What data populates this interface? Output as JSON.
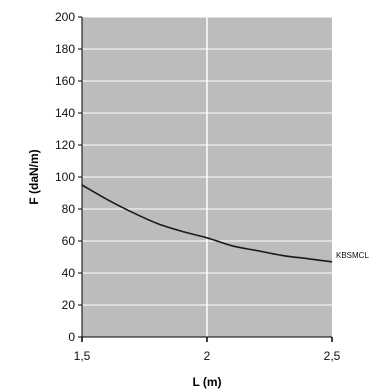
{
  "chart_data": {
    "type": "line",
    "title": "",
    "xlabel": "L (m)",
    "ylabel": "F (daN/m)",
    "xlim": [
      1.5,
      2.5
    ],
    "ylim": [
      0,
      200
    ],
    "x_ticks": [
      1.5,
      2,
      2.5
    ],
    "x_tick_labels": [
      "1,5",
      "2",
      "2,5"
    ],
    "y_ticks": [
      0,
      20,
      40,
      60,
      80,
      100,
      120,
      140,
      160,
      180,
      200
    ],
    "y_tick_labels": [
      "0",
      "20",
      "40",
      "60",
      "80",
      "100",
      "120",
      "140",
      "160",
      "180",
      "200"
    ],
    "grid": true,
    "series": [
      {
        "name": "KBSMCL",
        "x": [
          1.5,
          1.6,
          1.7,
          1.8,
          1.9,
          2.0,
          2.1,
          2.2,
          2.3,
          2.4,
          2.5
        ],
        "y": [
          95,
          86,
          78,
          71,
          66,
          62,
          57,
          54,
          51,
          49,
          47
        ]
      }
    ]
  },
  "colors": {
    "plot_background": "#bcbcbc",
    "gridline": "#ffffff",
    "line": "#1a1a1a"
  }
}
